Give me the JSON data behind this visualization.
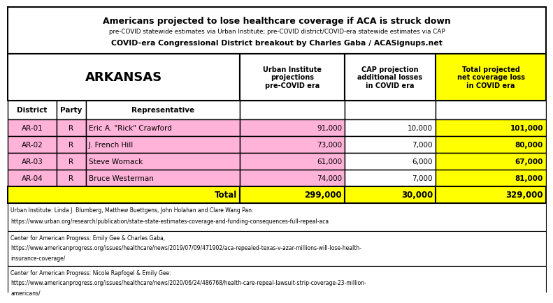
{
  "title_line1": "Americans projected to lose healthcare coverage if ACA is struck down",
  "title_line2": "pre-COVID statewide estimates via Urban Institute; pre-COVID district/COVID-era statewide estimates via CAP",
  "title_line3": "COVID-era Congressional District breakout by Charles Gaba / ACASignups.net",
  "state": "ARKANSAS",
  "col_headers": [
    "Urban Institute\nprojections\npre-COVID era",
    "CAP projection\nadditional losses\nin COVID era",
    "Total projected\nnet coverage loss\nin COVID era"
  ],
  "row_headers": [
    "District",
    "Party",
    "Representative"
  ],
  "rows": [
    [
      "AR-01",
      "R",
      "Eric A. \"Rick\" Crawford",
      "91,000",
      "10,000",
      "101,000"
    ],
    [
      "AR-02",
      "R",
      "J. French Hill",
      "73,000",
      "7,000",
      "80,000"
    ],
    [
      "AR-03",
      "R",
      "Steve Womack",
      "61,000",
      "6,000",
      "67,000"
    ],
    [
      "AR-04",
      "R",
      "Bruce Westerman",
      "74,000",
      "7,000",
      "81,000"
    ]
  ],
  "total_row": [
    "Total",
    "299,000",
    "30,000",
    "329,000"
  ],
  "footnotes": [
    "Urban Institute: Linda J. Blumberg, Matthew Buettgens, John Holahan and Clare Wang Pan:\nhttps://www.urban.org/research/publication/state-state-estimates-coverage-and-funding-consequences-full-repeal-aca",
    "Center for American Progress: Emily Gee & Charles Gaba,\nhttps://www.americanprogress.org/issues/healthcare/news/2019/07/09/471902/aca-repealed-texas-v-azar-millions-will-lose-health-\ninsurance-coverage/",
    "Center for American Progress: Nicole Rapfogel & Emily Gee:\nhttps://www.americanprogress.org/issues/healthcare/news/2020/06/24/486768/health-care-repeal-lawsuit-strip-coverage-23-million-\namericans/"
  ],
  "color_pink": "#FFB3D9",
  "color_yellow": "#FFFF00",
  "color_white": "#FFFFFF",
  "color_black": "#000000",
  "bg_color": "#FFFFFF"
}
